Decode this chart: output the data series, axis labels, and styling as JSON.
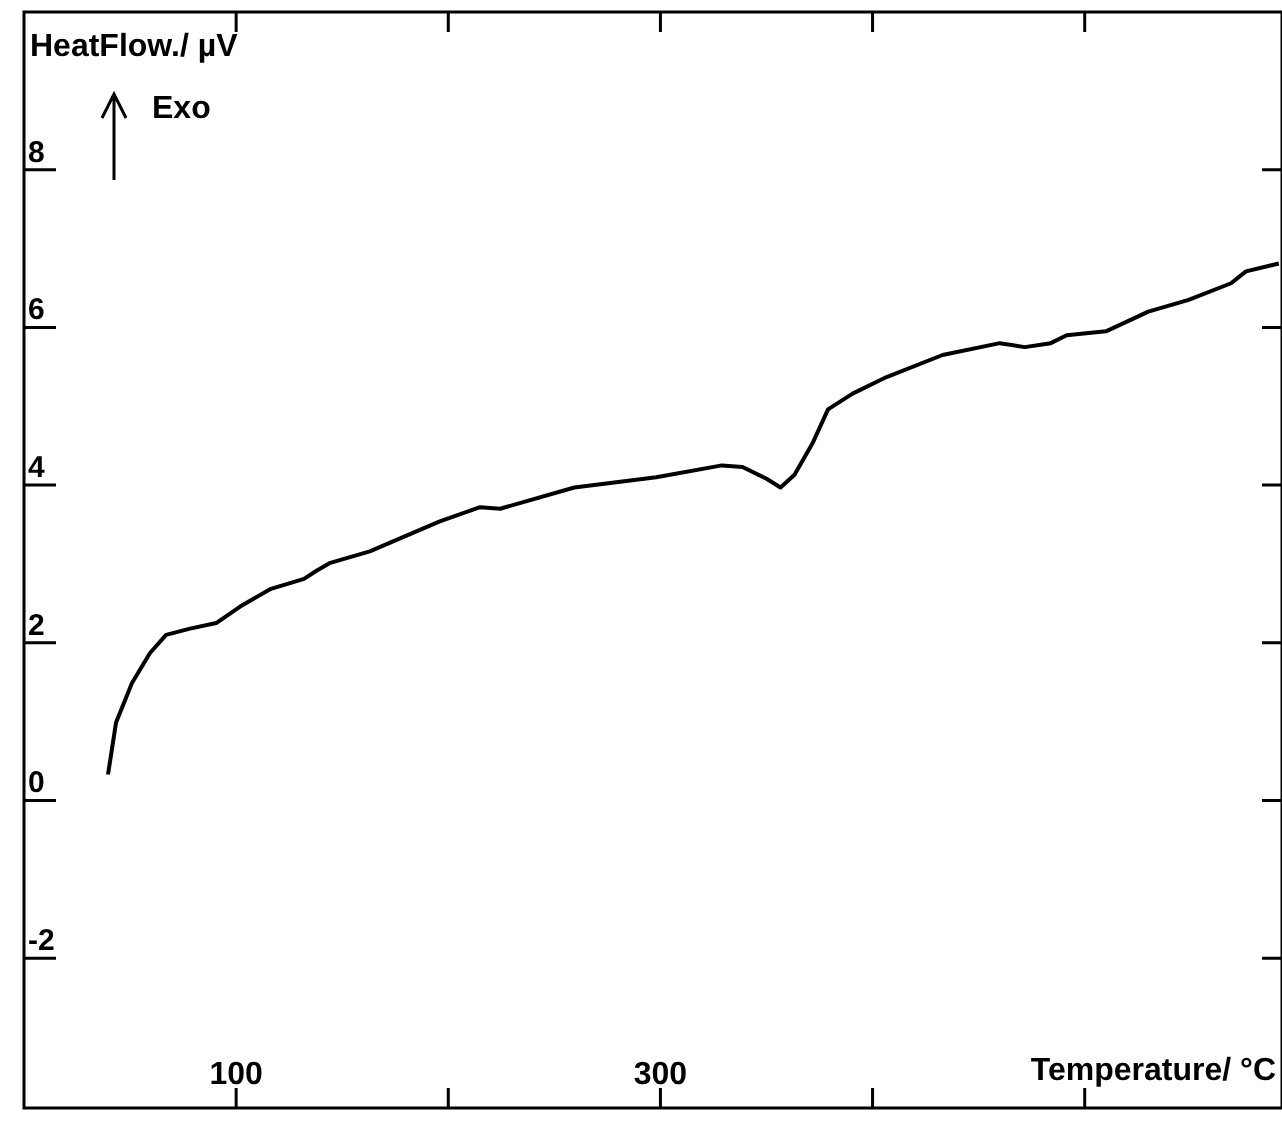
{
  "chart_data": {
    "type": "line",
    "xlabel": "Temperature/ °C",
    "ylabel": "HeatFlow./ µV",
    "annotations": [
      "Exo"
    ],
    "x": [
      39.6,
      43.4,
      50.9,
      59.4,
      67,
      78.3,
      90.6,
      101.9,
      116,
      132,
      137.7,
      144,
      163,
      177,
      196,
      215,
      224.5,
      259.4,
      298,
      329,
      338.7,
      350,
      356.6,
      363.2,
      371.7,
      379,
      390.6,
      406.6,
      433,
      460,
      471.7,
      484,
      491.5,
      510,
      530,
      549,
      569,
      576,
      591.5
    ],
    "series": [
      {
        "color": "#000000",
        "values": [
          0.33,
          0.99,
          1.49,
          1.87,
          2.1,
          2.18,
          2.25,
          2.46,
          2.68,
          2.81,
          2.91,
          3.01,
          3.16,
          3.32,
          3.54,
          3.72,
          3.7,
          3.97,
          4.1,
          4.25,
          4.23,
          4.08,
          3.97,
          4.13,
          4.53,
          4.96,
          5.16,
          5.37,
          5.65,
          5.8,
          5.75,
          5.8,
          5.9,
          5.95,
          6.2,
          6.35,
          6.56,
          6.71,
          6.81
        ]
      }
    ],
    "xlim": [
      0,
      593
    ],
    "xticks": [
      100,
      {
        "value": 200,
        "label": null
      },
      300,
      {
        "value": 400,
        "label": null
      },
      {
        "value": 500,
        "label": null
      }
    ],
    "ylim": [
      -3.9,
      10
    ],
    "yticks": [
      -2,
      0,
      2,
      4,
      6,
      8
    ],
    "grid": false,
    "legend": false,
    "marker": "none",
    "line_style": "solid"
  }
}
